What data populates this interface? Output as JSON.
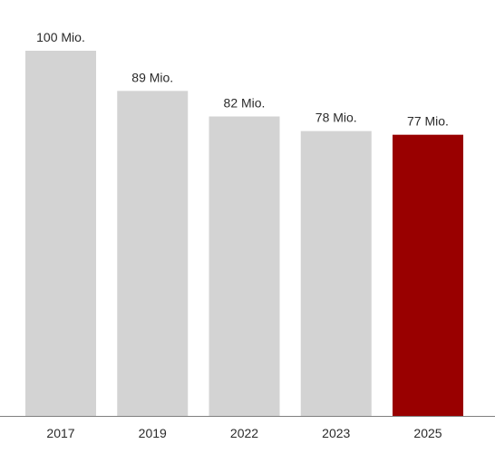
{
  "chart_data": {
    "type": "bar",
    "categories": [
      "2017",
      "2019",
      "2022",
      "2023",
      "2025"
    ],
    "values": [
      100,
      89,
      82,
      78,
      77
    ],
    "value_labels": [
      "100 Mio.",
      "89 Mio.",
      "82 Mio.",
      "78 Mio.",
      "77 Mio."
    ],
    "title": "",
    "xlabel": "",
    "ylabel": "",
    "ylim": [
      0,
      100
    ],
    "grid": false,
    "legend": "none",
    "colors": {
      "default_bar": "#d3d3d3",
      "highlight_bar": "#990000",
      "axis": "#7f7f7f",
      "text": "#2a2a2a"
    },
    "highlight_category": "2025"
  }
}
